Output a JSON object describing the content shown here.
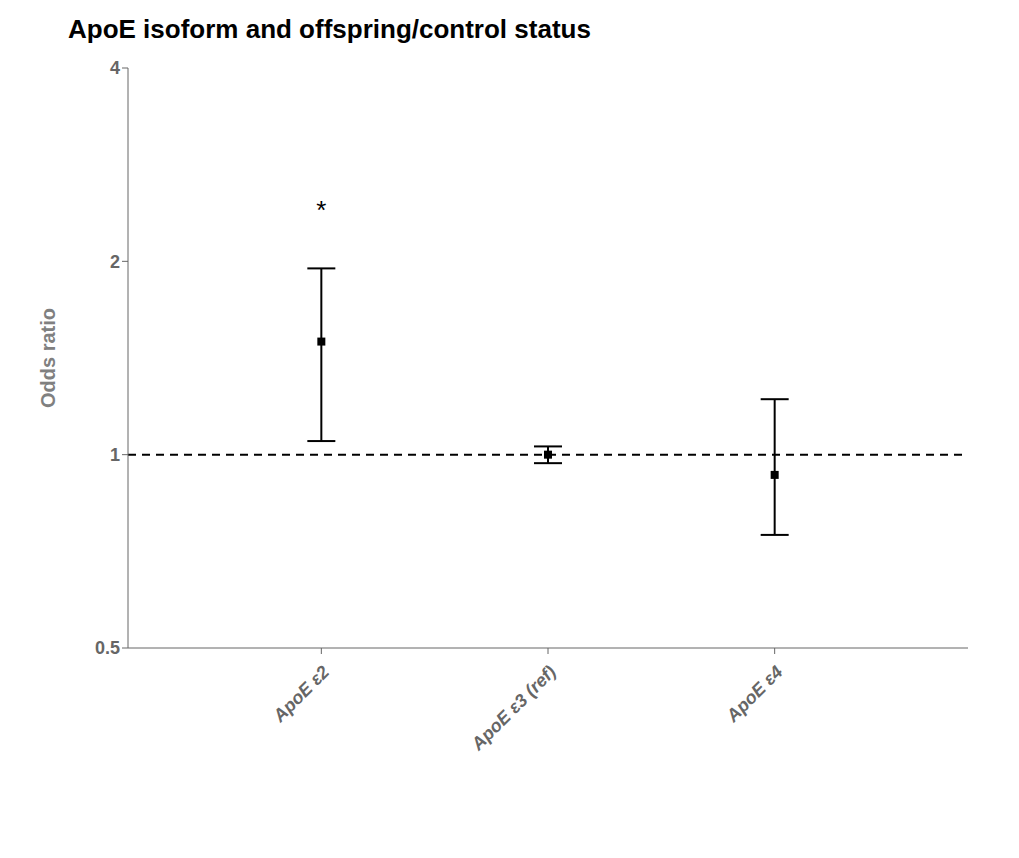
{
  "chart_data": {
    "type": "scatter",
    "title": "ApoE isoform and offspring/control status",
    "ylabel": "Odds ratio",
    "categories": [
      "ApoE ε2",
      "ApoE ε3 (ref)",
      "ApoE ε4"
    ],
    "values": [
      1.5,
      1.0,
      0.93
    ],
    "ci_lower": [
      1.05,
      0.97,
      0.75
    ],
    "ci_upper": [
      1.95,
      1.03,
      1.22
    ],
    "log": "y",
    "ylim": [
      0.5,
      4.0
    ],
    "yticks": [
      0.5,
      1,
      2,
      4
    ],
    "reference_line": 1.0,
    "color": "#000000",
    "marker": "square",
    "grid": false,
    "annotations": [
      {
        "text": "*",
        "x": "ApoE ε2",
        "y": 2.4
      }
    ]
  }
}
